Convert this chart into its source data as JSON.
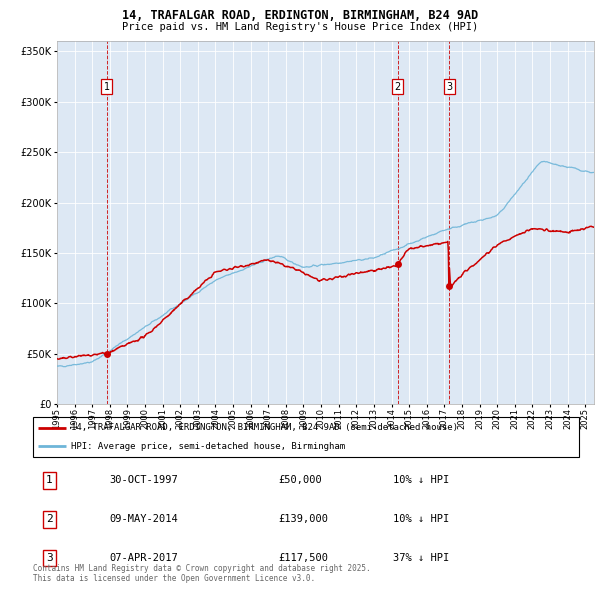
{
  "title1": "14, TRAFALGAR ROAD, ERDINGTON, BIRMINGHAM, B24 9AD",
  "title2": "Price paid vs. HM Land Registry's House Price Index (HPI)",
  "ytick_values": [
    0,
    50000,
    100000,
    150000,
    200000,
    250000,
    300000,
    350000
  ],
  "ylim": [
    0,
    360000
  ],
  "xlim": [
    1995,
    2025.5
  ],
  "hpi_color": "#6eb5d8",
  "price_color": "#cc0000",
  "background_color": "#dde8f4",
  "grid_color": "#ffffff",
  "sale_dates": [
    1997.833,
    2014.36,
    2017.27
  ],
  "sale_prices": [
    50000,
    139000,
    117500
  ],
  "legend_line1": "14, TRAFALGAR ROAD, ERDINGTON, BIRMINGHAM, B24 9AD (semi-detached house)",
  "legend_line2": "HPI: Average price, semi-detached house, Birmingham",
  "table": [
    {
      "num": "1",
      "date": "30-OCT-1997",
      "price": "£50,000",
      "hpi": "10% ↓ HPI"
    },
    {
      "num": "2",
      "date": "09-MAY-2014",
      "price": "£139,000",
      "hpi": "10% ↓ HPI"
    },
    {
      "num": "3",
      "date": "07-APR-2017",
      "price": "£117,500",
      "hpi": "37% ↓ HPI"
    }
  ],
  "footnote": "Contains HM Land Registry data © Crown copyright and database right 2025.\nThis data is licensed under the Open Government Licence v3.0."
}
